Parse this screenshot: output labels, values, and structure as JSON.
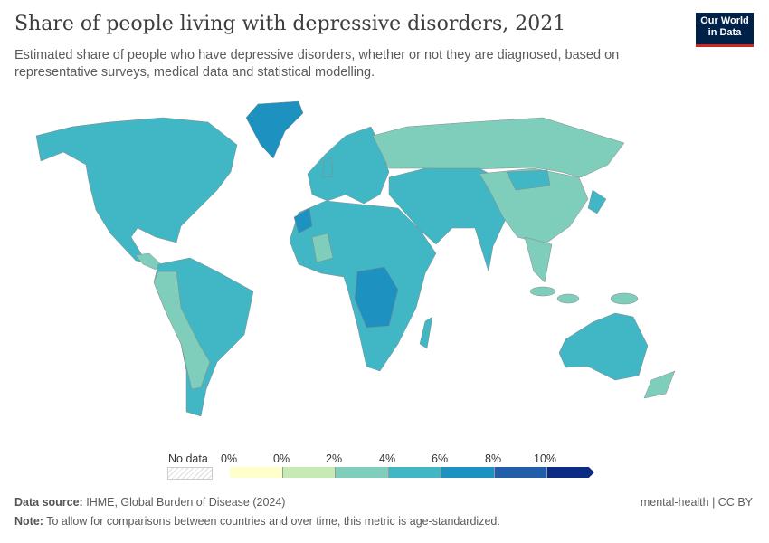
{
  "header": {
    "title": "Share of people living with depressive disorders, 2021",
    "subtitle": "Estimated share of people who have depressive disorders, whether or not they are diagnosed, based on representative surveys, medical data and statistical modelling.",
    "logo_line1": "Our World",
    "logo_line2": "in Data"
  },
  "legend": {
    "no_data_label": "No data",
    "tick_labels": [
      "0%",
      "0%",
      "2%",
      "4%",
      "6%",
      "8%",
      "10%"
    ],
    "bin_colors": [
      "#ffffcc",
      "#c7e9b4",
      "#7fcdbb",
      "#41b6c4",
      "#1d91c0",
      "#225ea8",
      "#0c2c84"
    ],
    "no_data_color": "#e6e6e6"
  },
  "footer": {
    "source_label": "Data source:",
    "source_text": "IHME, Global Burden of Disease (2024)",
    "license": "mental-health | CC BY",
    "note_label": "Note:",
    "note_text": "To allow for comparisons between countries and over time, this metric is age-standardized."
  }
}
